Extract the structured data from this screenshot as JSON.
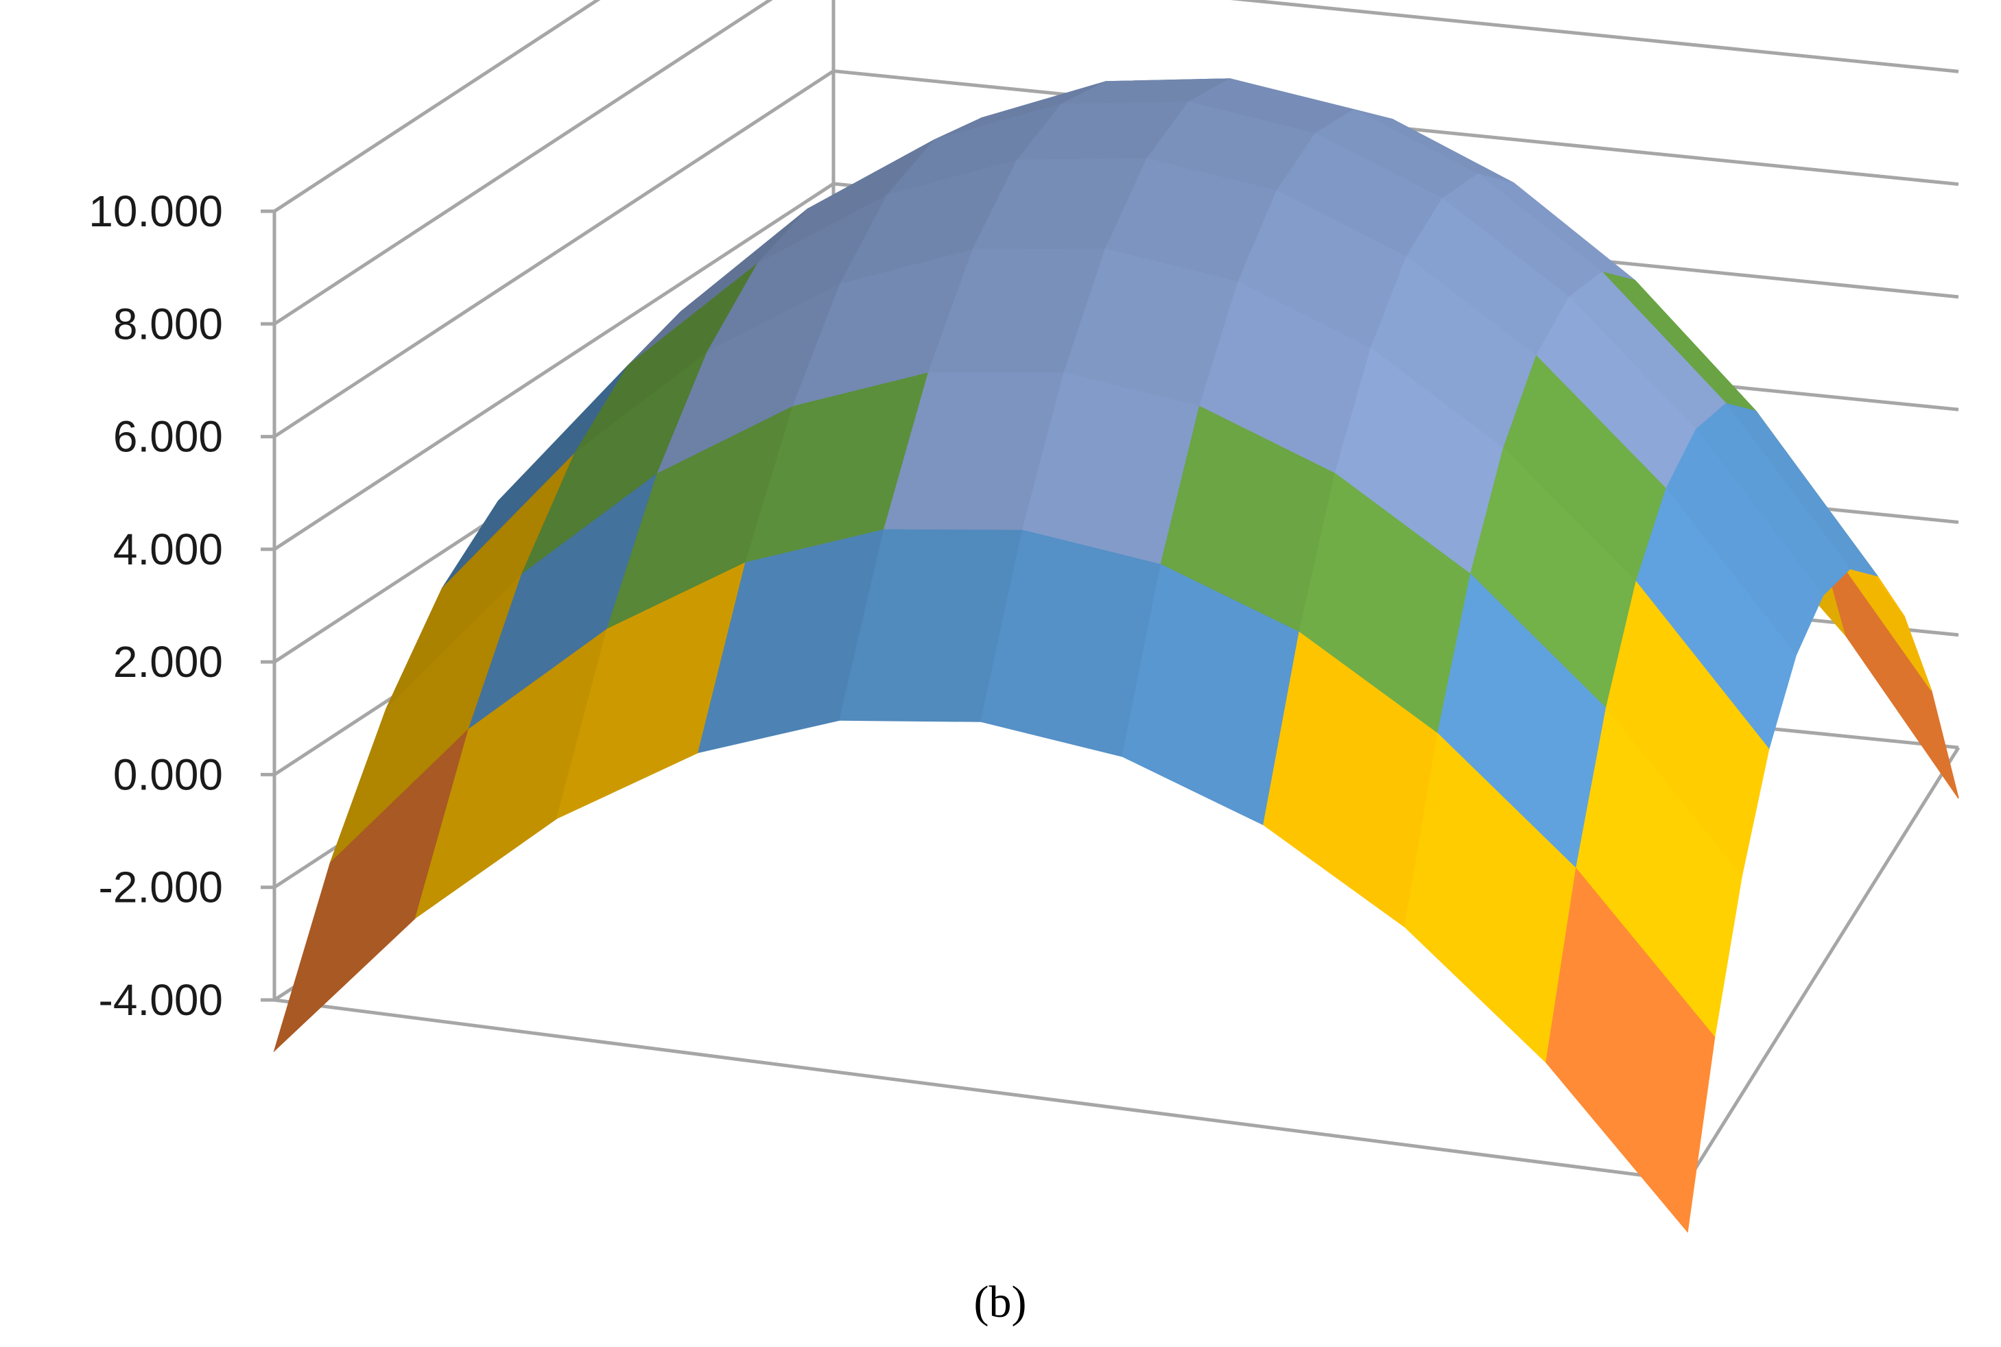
{
  "chart_data": {
    "type": "surface",
    "title": "",
    "xlabel": "",
    "ylabel": "",
    "zlabel": "",
    "zlim": [
      -4,
      10
    ],
    "z_ticks": [
      "-4.000",
      "-2.000",
      "0.000",
      "2.000",
      "4.000",
      "6.000",
      "8.000",
      "10.000"
    ],
    "grid": true,
    "legend": "none",
    "bands": [
      {
        "range": [
          -4,
          -2
        ],
        "color": "#ed7d31"
      },
      {
        "range": [
          -2,
          0
        ],
        "color": "#a5a5a5"
      },
      {
        "range": [
          0,
          2
        ],
        "color": "#ffc000"
      },
      {
        "range": [
          2,
          4
        ],
        "color": "#5b9bd5"
      },
      {
        "range": [
          4,
          6
        ],
        "color": "#70ad47"
      },
      {
        "range": [
          6,
          8
        ],
        "color": "#8faadc"
      }
    ],
    "surface_description": "z = 10 - 7.45*(u^2 + v^2) over u,v in [-1,1] (11x11 grid)",
    "grid_size": 11
  },
  "caption": "(b)"
}
